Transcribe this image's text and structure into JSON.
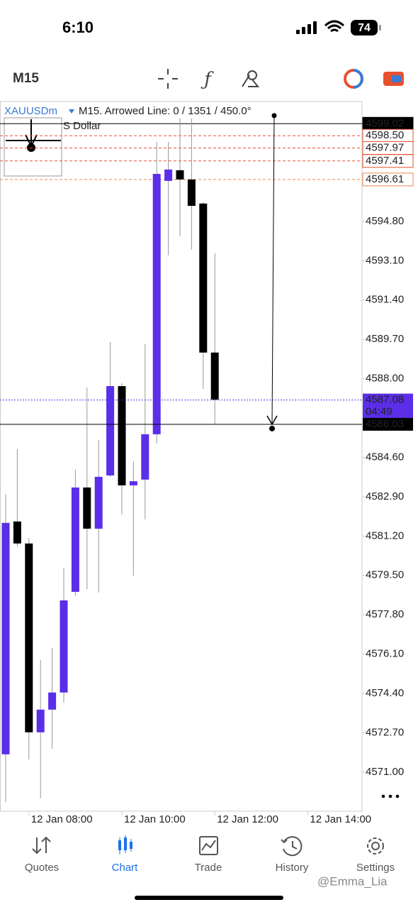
{
  "status_bar": {
    "time": "6:10",
    "battery": "74"
  },
  "toolbar": {
    "timeframe": "M15"
  },
  "chart_data": {
    "type": "candlestick",
    "symbol": "XAUUSDm",
    "header": "M15. Arrowed Line: 0 / 1351 / 450.0°",
    "description": "S Dollar",
    "categories": [
      null,
      null,
      "12 Jan 08:00",
      null,
      null,
      null,
      null,
      null,
      null,
      null,
      "12 Jan 10:00",
      null,
      null,
      null,
      null,
      null,
      null,
      null,
      "12 Jan 12:00",
      null,
      null,
      null,
      null,
      null,
      null,
      null,
      "12 Jan 14:00"
    ],
    "open": [
      4571.77,
      4581.83,
      4580.88,
      4572.72,
      4573.7,
      4574.44,
      4578.79,
      4583.3,
      4581.52,
      4583.82,
      4587.68,
      4583.39,
      4583.64,
      4585.6,
      4596.55,
      4597.01,
      4596.61,
      4595.57,
      4589.13,
      null,
      null,
      null,
      null,
      null,
      null,
      null,
      null
    ],
    "high": [
      4583.0,
      4584.95,
      4581.12,
      4575.85,
      4576.37,
      4579.83,
      4584.07,
      4587.62,
      4585.35,
      4589.59,
      4587.81,
      4584.43,
      4589.49,
      4598.24,
      4598.24,
      4599.25,
      4599.25,
      4595.63,
      4593.42,
      null,
      null,
      null,
      null,
      null,
      null,
      null,
      null
    ],
    "low": [
      4569.71,
      4580.75,
      4571.55,
      4569.87,
      4572.01,
      4574.0,
      4578.61,
      4578.91,
      4578.76,
      4583.76,
      4582.13,
      4579.47,
      4581.92,
      4585.2,
      4593.33,
      4594.16,
      4593.57,
      4587.56,
      4586.03,
      null,
      null,
      null,
      null,
      null,
      null,
      null,
      null
    ],
    "close": [
      4581.77,
      4580.88,
      4572.72,
      4573.7,
      4574.44,
      4578.42,
      4583.3,
      4581.52,
      4583.76,
      4587.68,
      4583.39,
      4583.57,
      4585.6,
      4596.85,
      4597.04,
      4596.61,
      4595.47,
      4589.13,
      4587.1,
      null,
      null,
      null,
      null,
      null,
      null,
      null,
      null
    ],
    "up_color": "#5b2ee8",
    "down_color": "#000000",
    "ylim": [
      4569.31,
      4599.98
    ],
    "yticks": [
      {
        "value": 4594.8,
        "label": "4594.80"
      },
      {
        "value": 4593.1,
        "label": "4593.10"
      },
      {
        "value": 4591.4,
        "label": "4591.40"
      },
      {
        "value": 4589.7,
        "label": "4589.70"
      },
      {
        "value": 4588.0,
        "label": "4588.00"
      },
      {
        "value": 4584.6,
        "label": "4584.60"
      },
      {
        "value": 4582.9,
        "label": "4582.90"
      },
      {
        "value": 4581.2,
        "label": "4581.20"
      },
      {
        "value": 4579.5,
        "label": "4579.50"
      },
      {
        "value": 4577.8,
        "label": "4577.80"
      },
      {
        "value": 4576.1,
        "label": "4576.10"
      },
      {
        "value": 4574.4,
        "label": "4574.40"
      },
      {
        "value": 4572.7,
        "label": "4572.70"
      },
      {
        "value": 4571.0,
        "label": "4571.00"
      }
    ],
    "levels": [
      {
        "value": 4599.02,
        "label": "4599.02",
        "color": "#000000"
      },
      {
        "value": 4598.5,
        "label": "4598.50",
        "color": "#e8502e"
      },
      {
        "value": 4597.97,
        "label": "4597.97",
        "color": "#e8502e"
      },
      {
        "value": 4597.41,
        "label": "4597.41",
        "color": "#e8502e"
      },
      {
        "value": 4596.61,
        "label": "4596.61",
        "color": "#f08a4b"
      }
    ],
    "current_price": {
      "value": 4587.08,
      "label": "4587.08",
      "countdown": "04:49",
      "color": "#5b2ee8"
    },
    "arrowed_line": {
      "from": 4599.37,
      "to": {
        "value": 4586.03,
        "label": "4586.03"
      }
    }
  },
  "nav": {
    "tabs": [
      "Quotes",
      "Chart",
      "Trade",
      "History",
      "Settings"
    ],
    "active": "Chart"
  },
  "watermark": "@Emma_Lia"
}
